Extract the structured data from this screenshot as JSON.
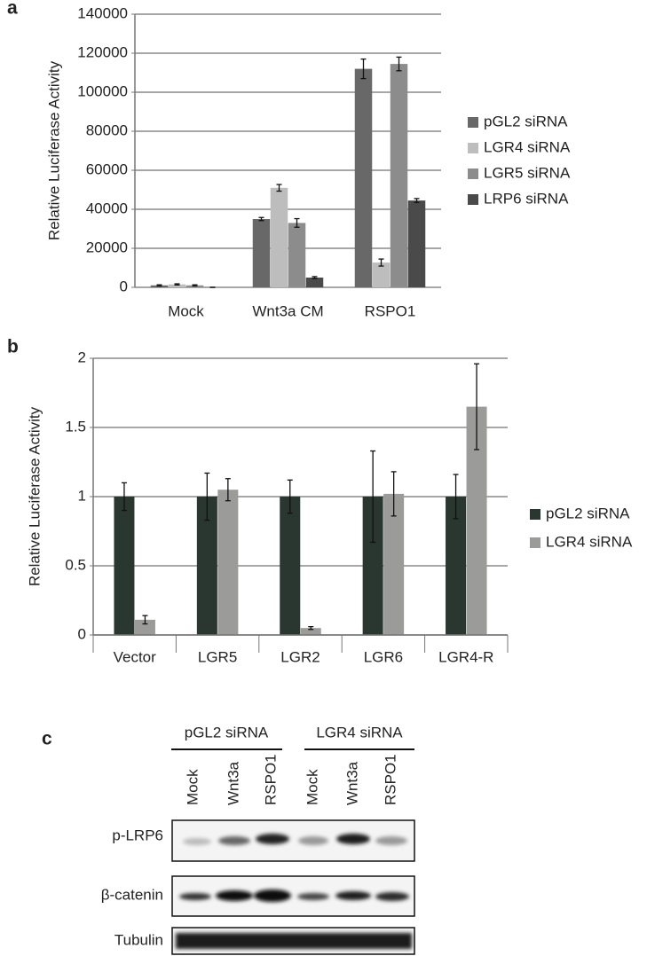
{
  "chart_data": [
    {
      "type": "bar",
      "panel_label": "a",
      "y_label": "Relative Luciferase Activity",
      "categories": [
        "Mock",
        "Wnt3a CM",
        "RSPO1"
      ],
      "series": [
        {
          "name": "pGL2 siRNA",
          "color": "#686868",
          "values": [
            1000,
            35000,
            112000
          ],
          "errors": [
            300,
            800,
            5000
          ]
        },
        {
          "name": "LGR4 siRNA",
          "color": "#bdbdbd",
          "values": [
            1500,
            51000,
            12700
          ],
          "errors": [
            300,
            1700,
            1800
          ]
        },
        {
          "name": "LGR5 siRNA",
          "color": "#8c8c8c",
          "values": [
            1000,
            33000,
            114500
          ],
          "errors": [
            300,
            2200,
            3500
          ]
        },
        {
          "name": "LRP6 siRNA",
          "color": "#4a4a4a",
          "values": [
            0,
            5000,
            44500
          ],
          "errors": [
            0,
            500,
            1000
          ]
        }
      ],
      "ylim": [
        0,
        140000
      ],
      "yticks": [
        0,
        20000,
        40000,
        60000,
        80000,
        100000,
        120000,
        140000
      ],
      "grid": true,
      "legend": "right"
    },
    {
      "type": "bar",
      "panel_label": "b",
      "y_label": "Relative Luciferase Activity",
      "categories": [
        "Vector",
        "LGR5",
        "LGR2",
        "LGR6",
        "LGR4-R"
      ],
      "series": [
        {
          "name": "pGL2 siRNA",
          "color": "#2a3630",
          "values": [
            1,
            1,
            1,
            1,
            1
          ],
          "errors": [
            0.1,
            0.17,
            0.12,
            0.33,
            0.16
          ]
        },
        {
          "name": "LGR4 siRNA",
          "color": "#9b9b99",
          "values": [
            0.11,
            1.05,
            0.05,
            1.02,
            1.65
          ],
          "errors": [
            0.03,
            0.08,
            0.01,
            0.16,
            0.31
          ]
        }
      ],
      "ylim": [
        0,
        2
      ],
      "yticks": [
        0,
        0.5,
        1,
        1.5,
        2
      ],
      "grid": true,
      "legend": "right"
    }
  ],
  "blot": {
    "panel_label": "c",
    "groups": [
      "pGL2 siRNA",
      "LGR4 siRNA"
    ],
    "lanes": [
      "Mock",
      "Wnt3a",
      "RSPO1",
      "Mock",
      "Wnt3a",
      "RSPO1"
    ],
    "rows": [
      "p-LRP6",
      "β-catenin",
      "Tubulin"
    ]
  }
}
